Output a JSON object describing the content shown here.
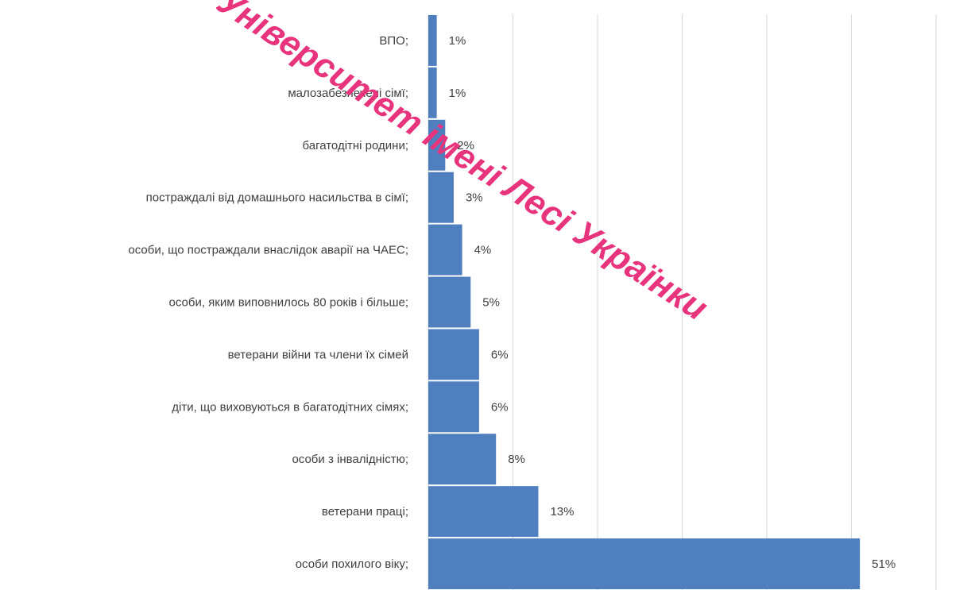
{
  "chart_data": {
    "type": "bar",
    "orientation": "horizontal",
    "categories": [
      "ВПО;",
      "малозабезпечені сімї;",
      "багатодітні родини;",
      "постраждалі від домашнього насильства в сімї;",
      "особи, що постраждали внаслідок аварії на ЧАЕС;",
      "особи, яким виповнилось 80 років і більше;",
      "ветерани війни та члени їх сімей",
      "діти, що виховуються в багатодітних сімях;",
      "особи з інвалідністю;",
      "ветерани праці;",
      "особи похилого віку;"
    ],
    "values": [
      1,
      1,
      2,
      3,
      4,
      5,
      6,
      6,
      8,
      13,
      51
    ],
    "value_labels": [
      "1%",
      "1%",
      "2%",
      "3%",
      "4%",
      "5%",
      "6%",
      "6%",
      "8%",
      "13%",
      "51%"
    ],
    "xlim": [
      0,
      60
    ],
    "grid": true,
    "bar_color": "#4f7fbe",
    "title": "",
    "xlabel": "",
    "ylabel": ""
  },
  "watermark": {
    "text": "Університет імені Лесі Українки",
    "color": "#e8337d"
  }
}
